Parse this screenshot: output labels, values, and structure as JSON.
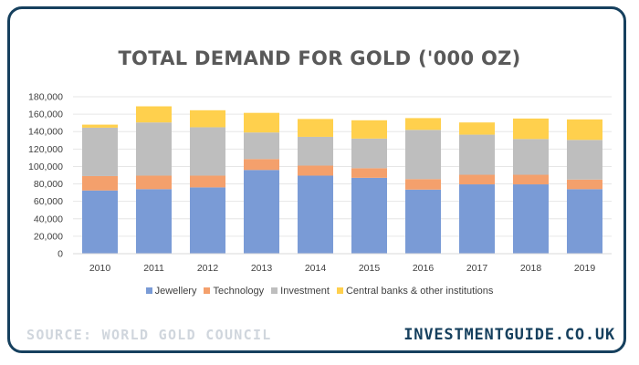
{
  "chart_data": {
    "type": "bar",
    "stacked": true,
    "title": "TOTAL DEMAND FOR GOLD ('000 OZ)",
    "xlabel": "",
    "ylabel": "",
    "categories": [
      "2010",
      "2011",
      "2012",
      "2013",
      "2014",
      "2015",
      "2016",
      "2017",
      "2018",
      "2019"
    ],
    "ylim": [
      0,
      180000
    ],
    "yticks": [
      0,
      20000,
      40000,
      60000,
      80000,
      100000,
      120000,
      140000,
      160000,
      180000
    ],
    "ytick_labels": [
      "0",
      "20,000",
      "40,000",
      "60,000",
      "80,000",
      "100,000",
      "120,000",
      "140,000",
      "160,000",
      "180,000"
    ],
    "grid": true,
    "legend_position": "bottom",
    "series": [
      {
        "name": "Jewellery",
        "color": "#7a9bd6",
        "values": [
          72500,
          74000,
          76000,
          96000,
          89500,
          87000,
          73500,
          79500,
          79500,
          74000
        ]
      },
      {
        "name": "Technology",
        "color": "#f4a06c",
        "values": [
          16500,
          15500,
          13500,
          12500,
          11500,
          11000,
          12000,
          11000,
          11000,
          11000
        ]
      },
      {
        "name": "Investment",
        "color": "#bebebe",
        "values": [
          55500,
          61000,
          55500,
          30500,
          33000,
          34000,
          56500,
          46000,
          41000,
          45500
        ]
      },
      {
        "name": "Central banks & other institutions",
        "color": "#ffd04d",
        "values": [
          3500,
          18500,
          19500,
          22500,
          20500,
          21000,
          13500,
          14000,
          23500,
          23500
        ]
      }
    ]
  },
  "footer": {
    "source": "SOURCE: WORLD GOLD COUNCIL",
    "brand": "INVESTMENTGUIDE.CO.UK"
  }
}
